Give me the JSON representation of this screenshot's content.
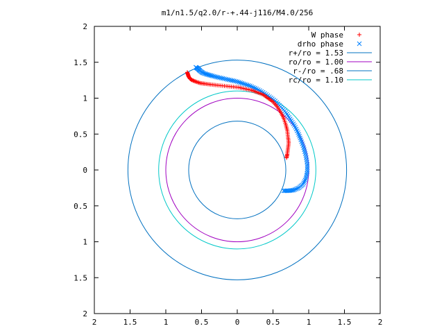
{
  "chart_data": {
    "type": "scatter",
    "title": "m1/n1.5/q2.0/r-+.44-j116/M4.0/256",
    "xlabel": "",
    "ylabel": "",
    "xlim": [
      -2,
      2
    ],
    "ylim": [
      -2,
      2
    ],
    "x_ticks": [
      {
        "value": -2,
        "label": "2"
      },
      {
        "value": -1.5,
        "label": "1.5"
      },
      {
        "value": -1,
        "label": "1"
      },
      {
        "value": -0.5,
        "label": "0.5"
      },
      {
        "value": 0,
        "label": "0"
      },
      {
        "value": 0.5,
        "label": "0.5"
      },
      {
        "value": 1,
        "label": "1"
      },
      {
        "value": 1.5,
        "label": "1.5"
      },
      {
        "value": 2,
        "label": "2"
      }
    ],
    "y_ticks": [
      {
        "value": 2,
        "label": "2"
      },
      {
        "value": 1.5,
        "label": "1.5"
      },
      {
        "value": 1,
        "label": "1"
      },
      {
        "value": 0.5,
        "label": "0.5"
      },
      {
        "value": 0,
        "label": "0"
      },
      {
        "value": -0.5,
        "label": "0.5"
      },
      {
        "value": -1,
        "label": "1"
      },
      {
        "value": -1.5,
        "label": "1.5"
      },
      {
        "value": -2,
        "label": "2"
      }
    ],
    "grid": false,
    "legend_position": "top-right",
    "series": [
      {
        "name": "W phase",
        "marker": "plus",
        "color": "#ff0000",
        "points": [
          [
            -0.7,
            1.36
          ],
          [
            -0.69,
            1.33
          ],
          [
            -0.68,
            1.3
          ],
          [
            -0.66,
            1.27
          ],
          [
            -0.63,
            1.25
          ],
          [
            -0.58,
            1.23
          ],
          [
            -0.52,
            1.21
          ],
          [
            -0.45,
            1.2
          ],
          [
            -0.37,
            1.19
          ],
          [
            -0.28,
            1.18
          ],
          [
            -0.18,
            1.17
          ],
          [
            -0.08,
            1.16
          ],
          [
            0.02,
            1.15
          ],
          [
            0.11,
            1.13
          ],
          [
            0.2,
            1.11
          ],
          [
            0.28,
            1.08
          ],
          [
            0.36,
            1.05
          ],
          [
            0.43,
            1.0
          ],
          [
            0.5,
            0.95
          ],
          [
            0.56,
            0.88
          ],
          [
            0.61,
            0.8
          ],
          [
            0.65,
            0.72
          ],
          [
            0.68,
            0.63
          ],
          [
            0.7,
            0.55
          ],
          [
            0.71,
            0.46
          ],
          [
            0.72,
            0.38
          ],
          [
            0.71,
            0.3
          ],
          [
            0.7,
            0.22
          ],
          [
            0.69,
            0.17
          ]
        ]
      },
      {
        "name": "drho phase",
        "marker": "cross",
        "color": "#0080ff",
        "points": [
          [
            -0.58,
            1.43
          ],
          [
            -0.55,
            1.41
          ],
          [
            -0.52,
            1.38
          ],
          [
            -0.48,
            1.35
          ],
          [
            -0.42,
            1.33
          ],
          [
            -0.35,
            1.31
          ],
          [
            -0.27,
            1.29
          ],
          [
            -0.18,
            1.27
          ],
          [
            -0.09,
            1.25
          ],
          [
            0.0,
            1.23
          ],
          [
            0.09,
            1.2
          ],
          [
            0.18,
            1.17
          ],
          [
            0.27,
            1.13
          ],
          [
            0.36,
            1.08
          ],
          [
            0.45,
            1.02
          ],
          [
            0.53,
            0.96
          ],
          [
            0.61,
            0.88
          ],
          [
            0.68,
            0.8
          ],
          [
            0.74,
            0.71
          ],
          [
            0.8,
            0.62
          ],
          [
            0.85,
            0.52
          ],
          [
            0.89,
            0.42
          ],
          [
            0.93,
            0.31
          ],
          [
            0.96,
            0.2
          ],
          [
            0.98,
            0.08
          ],
          [
            0.98,
            -0.02
          ],
          [
            0.96,
            -0.12
          ],
          [
            0.92,
            -0.2
          ],
          [
            0.86,
            -0.25
          ],
          [
            0.79,
            -0.28
          ],
          [
            0.72,
            -0.29
          ],
          [
            0.65,
            -0.29
          ]
        ]
      },
      {
        "name": "r+/ro = 1.53",
        "type": "circle",
        "radius": 1.53,
        "color": "#0070c0"
      },
      {
        "name": "ro/ro = 1.00",
        "type": "circle",
        "radius": 1.0,
        "color": "#a000c0"
      },
      {
        "name": "r-/ro = .68",
        "type": "circle",
        "radius": 0.68,
        "color": "#0070c0"
      },
      {
        "name": "rc/ro = 1.10",
        "type": "circle",
        "radius": 1.1,
        "color": "#00c8c8"
      }
    ]
  }
}
